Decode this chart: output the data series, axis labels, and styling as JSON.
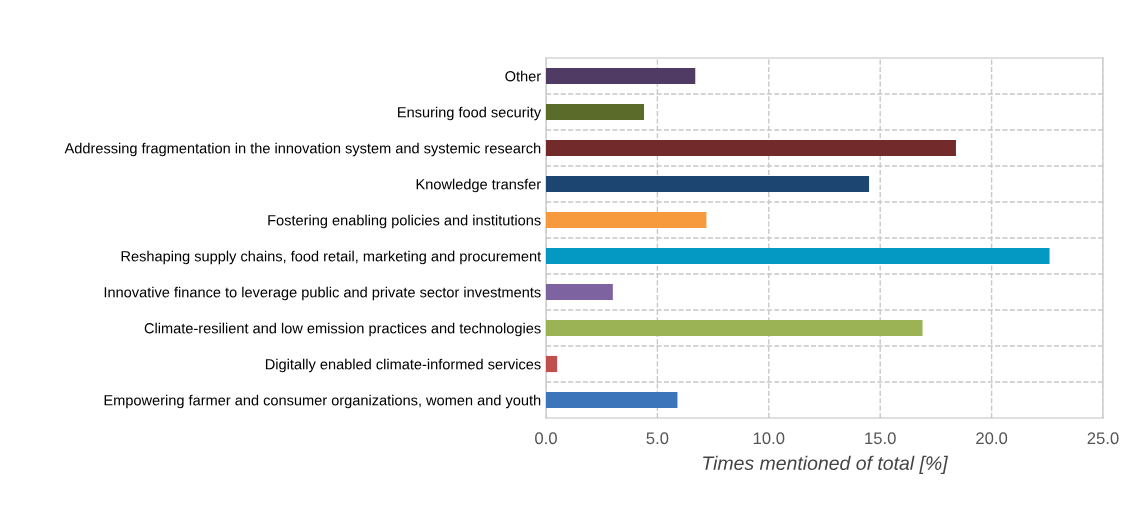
{
  "chart_data": {
    "type": "bar",
    "orientation": "horizontal",
    "xlabel": "Times mentioned of total [%]",
    "categories": [
      "Other",
      "Ensuring food security",
      "Addressing fragmentation in the innovation system and systemic research",
      "Knowledge transfer",
      "Fostering enabling policies and institutions",
      "Reshaping supply chains, food retail, marketing and procurement",
      "Innovative finance to leverage public and private sector investments",
      "Climate-resilient and low emission practices and technologies",
      "Digitally enabled climate-informed services",
      "Empowering farmer and consumer organizations, women and youth"
    ],
    "values": [
      6.7,
      4.4,
      18.4,
      14.5,
      7.2,
      22.6,
      3.0,
      16.9,
      0.5,
      5.9
    ],
    "colors": [
      "#4f3b63",
      "#5a6b2a",
      "#722b2a",
      "#1c4572",
      "#f79a3e",
      "#0399c3",
      "#7e63a1",
      "#9bb354",
      "#c0504d",
      "#3c75b9"
    ],
    "xlim": [
      0,
      25
    ],
    "xticks": [
      {
        "value": 0,
        "label": "0.0"
      },
      {
        "value": 5,
        "label": "5.0"
      },
      {
        "value": 10,
        "label": "10.0"
      },
      {
        "value": 15,
        "label": "15.0"
      },
      {
        "value": 20,
        "label": "20.0"
      },
      {
        "value": 25,
        "label": "25.0"
      }
    ],
    "grid": true,
    "legend": false
  }
}
